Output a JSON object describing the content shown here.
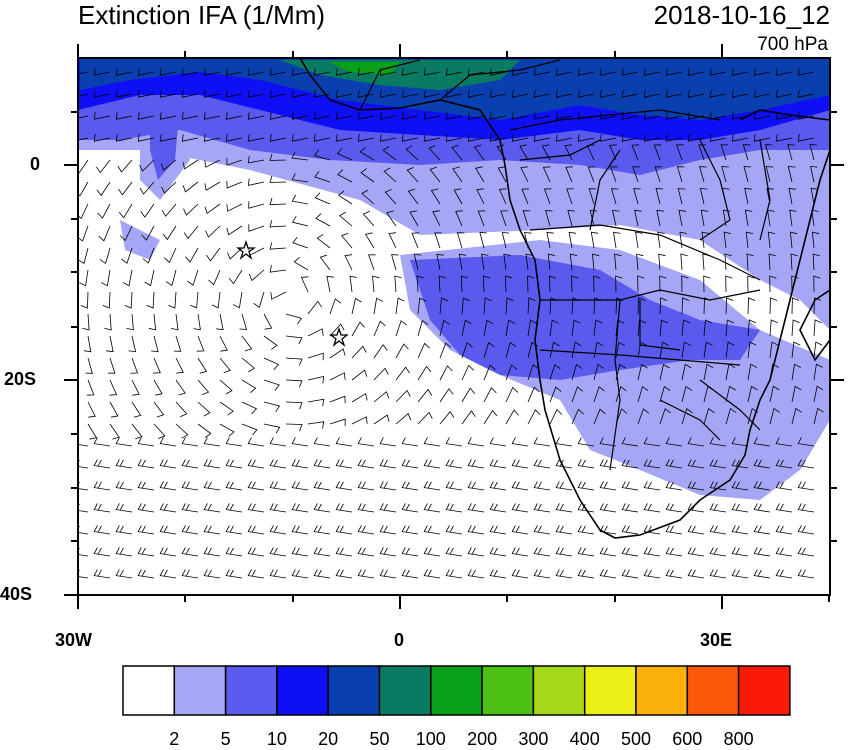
{
  "header": {
    "title": "Extinction IFA (1/Mm)",
    "datetime": "2018-10-16_12",
    "level": "700 hPa"
  },
  "axes": {
    "lat_labels": [
      "0",
      "20S",
      "40S"
    ],
    "lon_labels": [
      "30W",
      "0",
      "30E"
    ]
  },
  "colorbar": {
    "colors": [
      "#ffffff",
      "#a6a6f6",
      "#5a5aee",
      "#0f0ff6",
      "#0a3fb0",
      "#0b7a63",
      "#0aa018",
      "#4cc013",
      "#a6d91a",
      "#ecef16",
      "#fbb00a",
      "#fb5a08",
      "#fb1a08"
    ],
    "labels": [
      "2",
      "5",
      "10",
      "20",
      "50",
      "100",
      "200",
      "300",
      "400",
      "500",
      "600",
      "800"
    ]
  },
  "markers": [
    "star",
    "star"
  ]
}
